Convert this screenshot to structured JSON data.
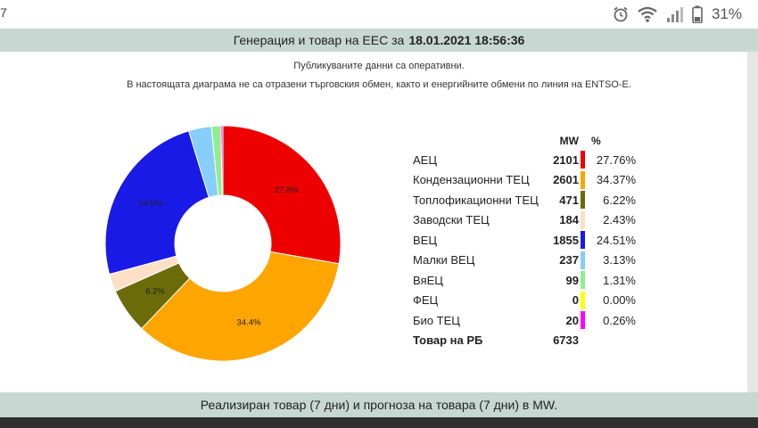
{
  "status_bar": {
    "left_glyph": "7",
    "battery_percent": "31%",
    "icons": [
      "alarm-icon",
      "wifi-icon",
      "signal-icon",
      "battery-icon"
    ]
  },
  "header": {
    "title": "Генерация и товар на ЕЕС за",
    "datetime": "18.01.2021 18:56:36"
  },
  "notices": {
    "line1": "Публикуваните данни са оперативни.",
    "line2": "В настоящата диаграма не са отразени търговския обмен, както и енергийните обмени по линия на ENTSO-E."
  },
  "legend": {
    "col_mw": "MW",
    "col_pct": "%",
    "rows": [
      {
        "name": "АЕЦ",
        "mw": "2101",
        "pct": "27.76%",
        "color": "#ee0000"
      },
      {
        "name": "Кондензационни ТЕЦ",
        "mw": "2601",
        "pct": "34.37%",
        "color": "#ffa500"
      },
      {
        "name": "Топлофикационни ТЕЦ",
        "mw": "471",
        "pct": "6.22%",
        "color": "#6b6b0a"
      },
      {
        "name": "Заводски ТЕЦ",
        "mw": "184",
        "pct": "2.43%",
        "color": "#fde0c6"
      },
      {
        "name": "ВЕЦ",
        "mw": "1855",
        "pct": "24.51%",
        "color": "#1a1ae6"
      },
      {
        "name": "Малки ВЕЦ",
        "mw": "237",
        "pct": "3.13%",
        "color": "#87cefa"
      },
      {
        "name": "ВяЕЦ",
        "mw": "99",
        "pct": "1.31%",
        "color": "#90ee90"
      },
      {
        "name": "ФЕЦ",
        "mw": "0",
        "pct": "0.00%",
        "color": "#ffff00"
      },
      {
        "name": "Био ТЕЦ",
        "mw": "20",
        "pct": "0.26%",
        "color": "#ff00ff"
      }
    ],
    "total_label": "Товар на РБ",
    "total_mw": "6733"
  },
  "chart_data": {
    "type": "pie",
    "categories": [
      "АЕЦ",
      "Кондензационни ТЕЦ",
      "Топлофикационни ТЕЦ",
      "Заводски ТЕЦ",
      "ВЕЦ",
      "Малки ВЕЦ",
      "ВяЕЦ",
      "ФЕЦ",
      "Био ТЕЦ"
    ],
    "values": [
      27.76,
      34.37,
      6.22,
      2.43,
      24.51,
      3.13,
      1.31,
      0.0,
      0.26
    ],
    "colors": [
      "#ee0000",
      "#ffa500",
      "#6b6b0a",
      "#fde0c6",
      "#1a1ae6",
      "#87cefa",
      "#90ee90",
      "#ffff00",
      "#ff00ff"
    ],
    "slice_labels": [
      "27.8%",
      "34.4%",
      "6.2%",
      "",
      "24.5%",
      "",
      "",
      "",
      ""
    ],
    "title": ""
  },
  "footer": {
    "text": "Реализиран товар (7 дни) и прогноза на товара (7 дни) в MW."
  }
}
